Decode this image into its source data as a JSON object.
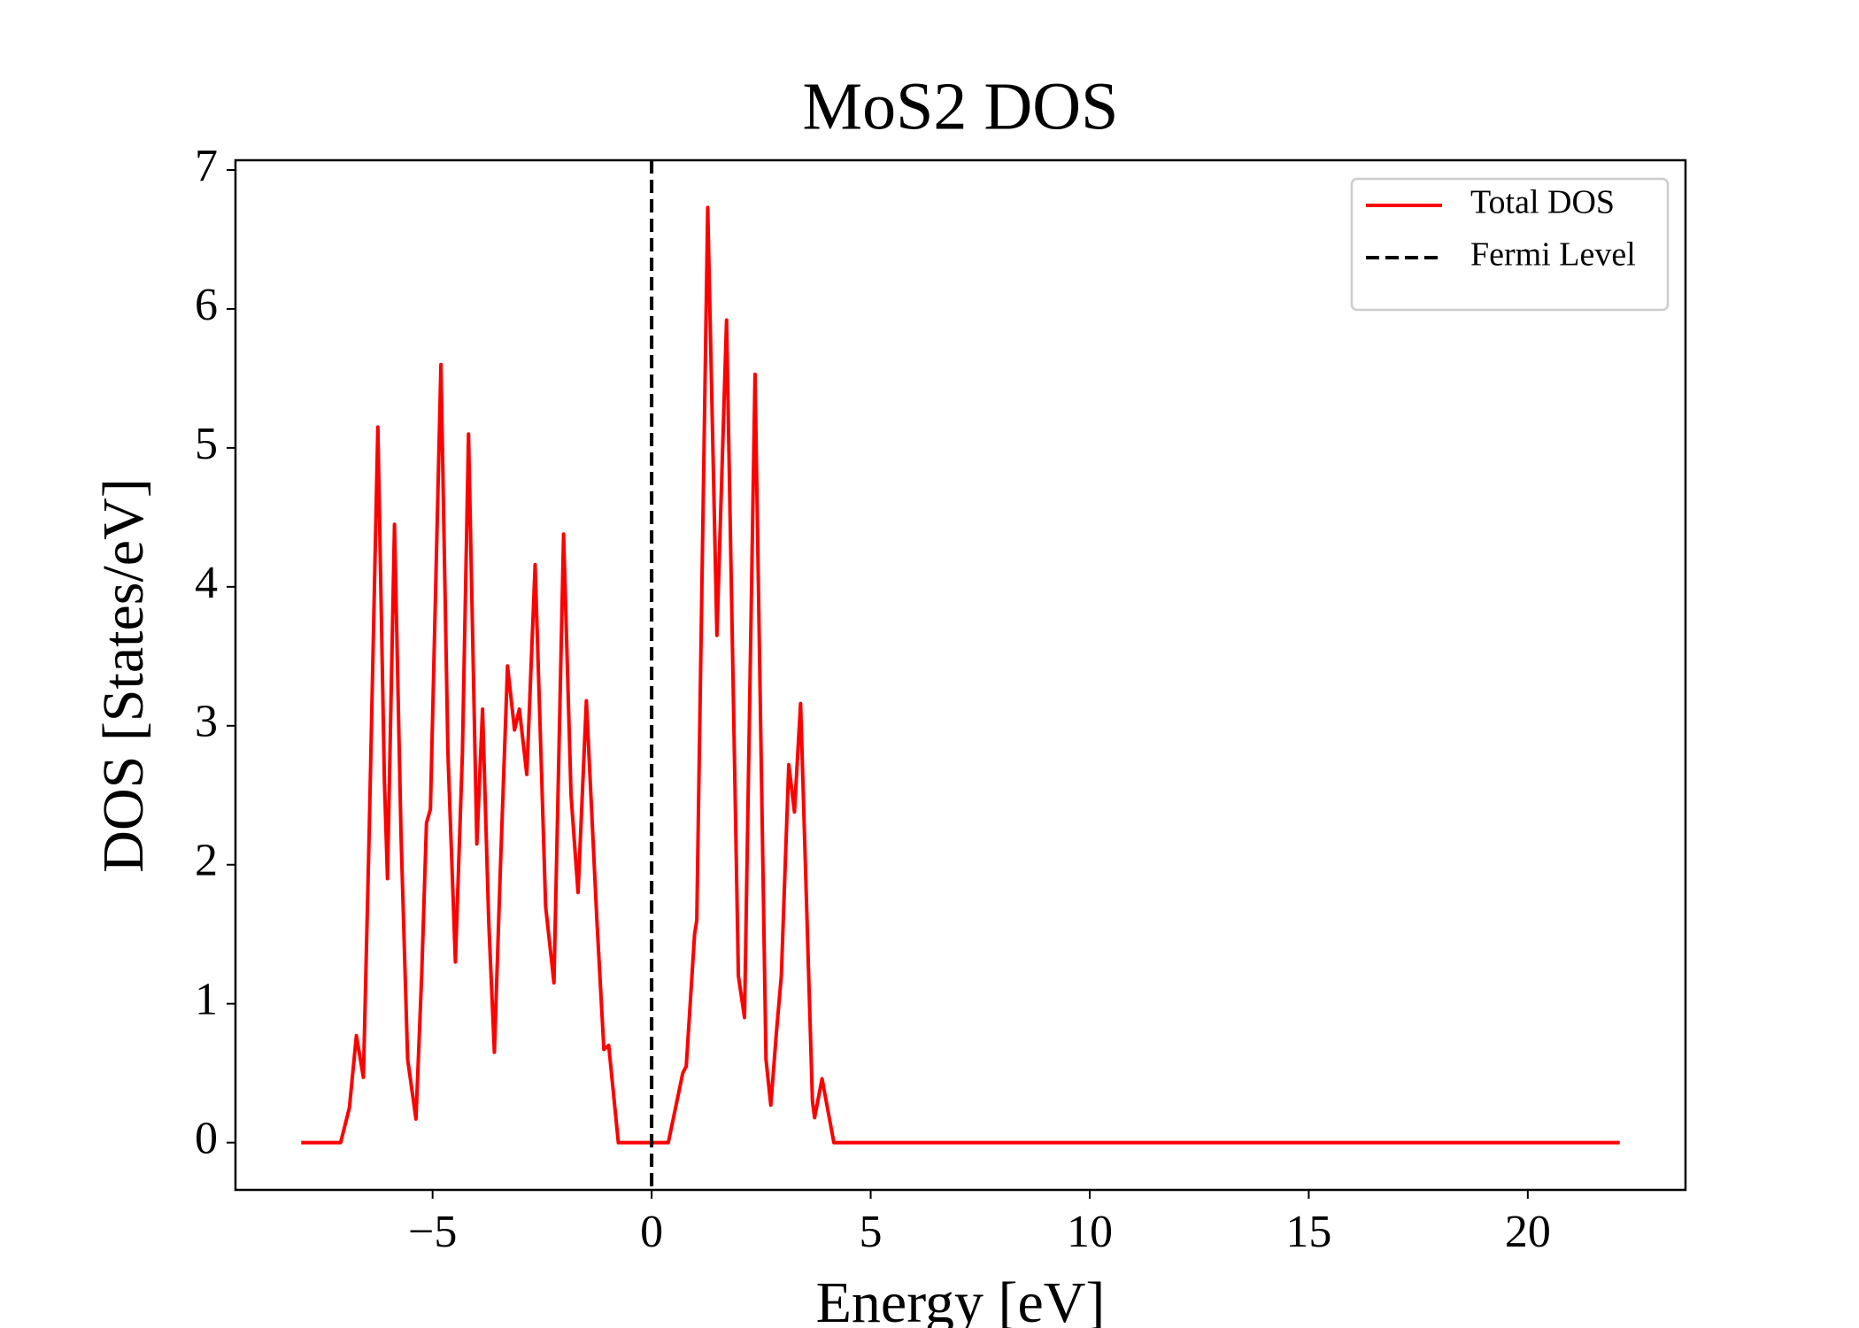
{
  "chart_data": {
    "type": "line",
    "title": "MoS2 DOS",
    "x_label": "Energy [eV]",
    "y_label": "DOS [States/eV]",
    "x": [
      -8,
      -7.1,
      -6.9,
      -6.74,
      -6.58,
      -6.45,
      -6.25,
      -6.1,
      -6.03,
      -5.87,
      -5.72,
      -5.57,
      -5.38,
      -5.25,
      -5.14,
      -5.05,
      -4.81,
      -4.65,
      -4.48,
      -4.32,
      -4.18,
      -3.99,
      -3.86,
      -3.72,
      -3.59,
      -3.45,
      -3.29,
      -3.13,
      -3.02,
      -2.85,
      -2.66,
      -2.42,
      -2.23,
      -2.01,
      -1.84,
      -1.68,
      -1.49,
      -1.25,
      -1.09,
      -0.98,
      -0.76,
      0.38,
      0.71,
      0.79,
      0.98,
      1.03,
      1.28,
      1.49,
      1.71,
      1.98,
      2.12,
      2.36,
      2.61,
      2.72,
      2.85,
      2.96,
      3.13,
      3.26,
      3.4,
      3.67,
      3.72,
      3.89,
      4.16,
      22.1
    ],
    "series": [
      {
        "name": "Total DOS",
        "color": "#ff0000",
        "values": [
          0,
          0,
          0.25,
          0.77,
          0.47,
          2.2,
          5.15,
          2.6,
          1.9,
          4.45,
          2.2,
          0.6,
          0.17,
          1.2,
          2.3,
          2.4,
          5.6,
          2.8,
          1.3,
          2.8,
          5.1,
          2.15,
          3.12,
          1.6,
          0.65,
          2.0,
          3.43,
          2.97,
          3.12,
          2.65,
          4.16,
          1.7,
          1.15,
          4.38,
          2.5,
          1.8,
          3.18,
          1.6,
          0.67,
          0.7,
          0,
          0,
          0.5,
          0.55,
          1.5,
          1.6,
          6.73,
          3.65,
          5.92,
          1.2,
          0.9,
          5.53,
          0.6,
          0.27,
          0.8,
          1.2,
          2.72,
          2.38,
          3.16,
          0.3,
          0.18,
          0.46,
          0,
          0
        ]
      }
    ],
    "vlines": [
      {
        "name": "Fermi Level",
        "x": 0,
        "color": "#000000",
        "style": "dashed"
      }
    ],
    "xlim": [
      -9.5,
      23.6
    ],
    "xticks": [
      {
        "value": -5,
        "label": "−5"
      },
      0,
      5,
      10,
      15,
      20
    ],
    "ylim": [
      -0.34,
      7.07
    ],
    "yticks": [
      0,
      1,
      2,
      3,
      4,
      5,
      6,
      7
    ],
    "grid": false,
    "legend": "upper right"
  }
}
